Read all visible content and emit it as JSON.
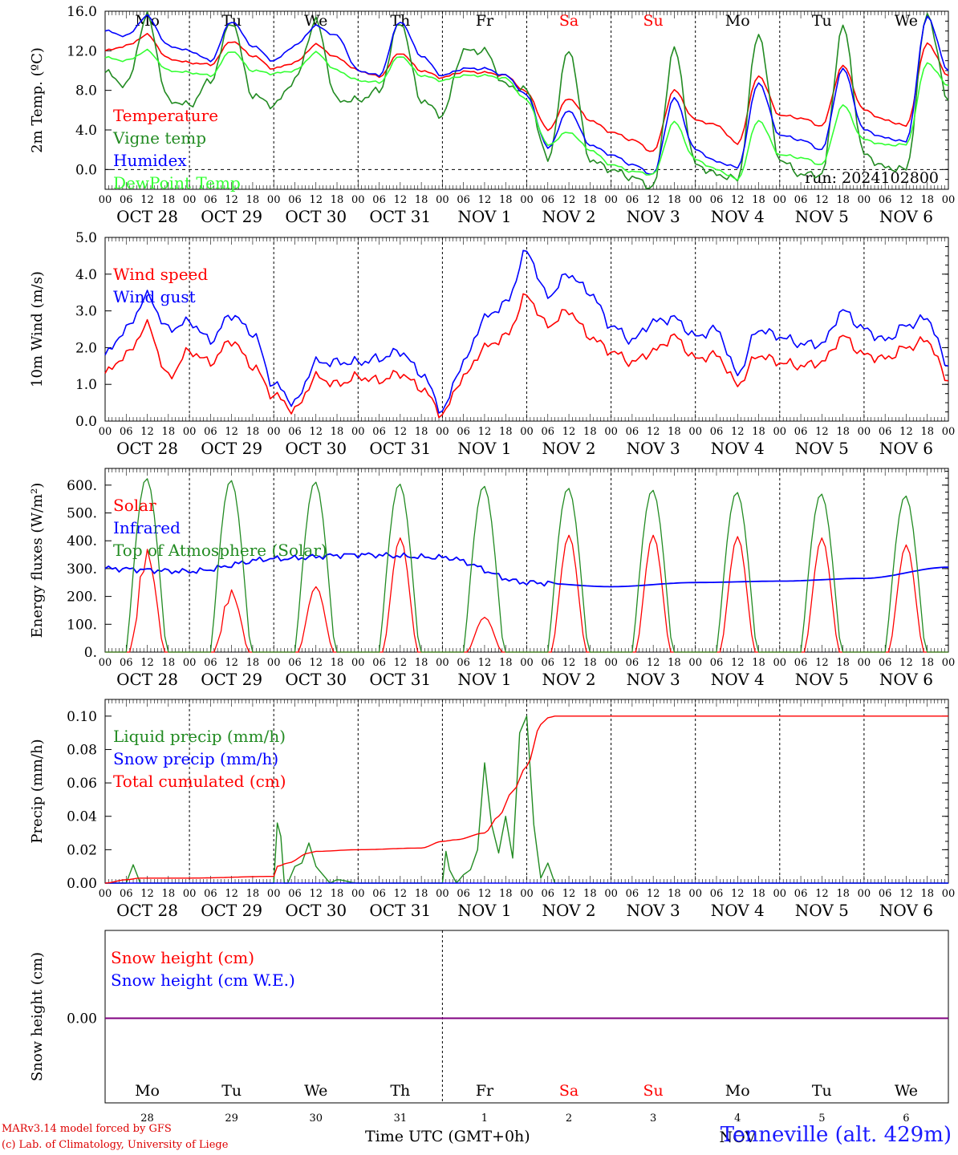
{
  "run_label": "run: 2024102800",
  "day_names": [
    "Mo",
    "Tu",
    "We",
    "Th",
    "Fr",
    "Sa",
    "Su",
    "Mo",
    "Tu",
    "We"
  ],
  "weekend_color": "#ff0000",
  "date_labels": [
    "OCT 28",
    "OCT 29",
    "OCT 30",
    "OCT 31",
    "NOV 1",
    "NOV 2",
    "NOV 3",
    "NOV 4",
    "NOV 5",
    "NOV 6"
  ],
  "hour_ticks": [
    "00",
    "06",
    "12",
    "18"
  ],
  "hour_end": "00",
  "bottom_day_numbers": [
    "28",
    "29",
    "30",
    "31",
    "1",
    "2",
    "3",
    "4",
    "5",
    "6"
  ],
  "bottom_month": "NOV",
  "footer": {
    "model": "MARv3.14 model forced by GFS",
    "lab": "(c) Lab. of Climatology, University of Liege",
    "xlabel": "Time UTC (GMT+0h)",
    "station": "Tenneville (alt. 429m)"
  },
  "chart_data": [
    {
      "type": "line",
      "ylabel": "2m Temp. (ºC)",
      "ylim": [
        -2,
        16
      ],
      "yticks": [
        "0.0",
        "4.0",
        "8.0",
        "12.0",
        "16.0"
      ],
      "ytick_values": [
        0,
        4,
        8,
        12,
        16
      ],
      "zero_line": true,
      "x_hours": [
        0,
        6,
        12,
        18,
        24,
        30,
        36,
        42,
        48,
        54,
        60,
        66,
        72,
        78,
        84,
        90,
        96,
        102,
        108,
        114,
        120,
        126,
        132,
        138,
        144,
        150,
        156,
        162,
        168,
        174,
        180,
        186,
        192,
        198,
        204,
        210,
        216,
        222,
        228,
        234,
        240
      ],
      "series": [
        {
          "name": "Temperature",
          "color": "#ff0000",
          "values": [
            12.0,
            12.5,
            13.6,
            11.2,
            10.8,
            10.6,
            13.0,
            11.5,
            10.2,
            10.8,
            12.6,
            11.3,
            10.0,
            9.4,
            11.8,
            10.0,
            9.3,
            9.9,
            9.8,
            9.5,
            7.8,
            4.0,
            7.2,
            5.0,
            3.8,
            3.0,
            1.8,
            8.0,
            5.0,
            4.5,
            2.6,
            9.5,
            5.5,
            5.2,
            4.4,
            10.5,
            6.0,
            5.0,
            4.4,
            12.8,
            9.5
          ]
        },
        {
          "name": "Vigne temp",
          "color": "#228b22",
          "values": [
            9.8,
            8.5,
            15.5,
            7.0,
            6.5,
            9.0,
            15.0,
            7.5,
            6.5,
            9.0,
            15.0,
            7.0,
            7.0,
            8.0,
            15.0,
            7.0,
            5.5,
            12.0,
            12.0,
            8.5,
            8.0,
            1.0,
            12.2,
            1.0,
            0.0,
            -0.8,
            -1.8,
            12.2,
            0.5,
            -0.5,
            -1.0,
            13.8,
            1.0,
            -0.5,
            -0.5,
            14.5,
            1.5,
            0.2,
            0.0,
            15.8,
            7.0
          ]
        },
        {
          "name": "Humidex",
          "color": "#0000ff",
          "values": [
            14.0,
            13.5,
            15.5,
            12.5,
            12.0,
            11.0,
            15.0,
            12.5,
            11.0,
            12.5,
            14.5,
            13.5,
            10.0,
            9.5,
            15.0,
            11.5,
            9.5,
            10.2,
            10.2,
            9.5,
            7.5,
            2.2,
            6.0,
            2.5,
            1.5,
            0.5,
            -0.5,
            7.2,
            2.0,
            0.8,
            0.2,
            8.8,
            3.5,
            3.0,
            2.0,
            10.2,
            4.0,
            3.2,
            2.8,
            15.5,
            10.0
          ]
        },
        {
          "name": "DewPoint Temp",
          "color": "#33ff33",
          "values": [
            11.3,
            11.0,
            12.0,
            10.0,
            9.8,
            9.5,
            12.0,
            10.0,
            9.7,
            10.0,
            11.8,
            10.0,
            9.0,
            8.8,
            11.5,
            9.5,
            9.0,
            9.5,
            9.5,
            9.2,
            7.0,
            2.5,
            3.8,
            2.0,
            0.5,
            -0.2,
            -0.5,
            4.8,
            1.0,
            0.0,
            -1.0,
            5.0,
            1.5,
            1.2,
            0.5,
            6.5,
            3.0,
            2.5,
            2.5,
            10.8,
            8.5
          ]
        }
      ]
    },
    {
      "type": "line",
      "ylabel": "10m Wind (m/s)",
      "ylim": [
        0,
        5
      ],
      "yticks": [
        "0.0",
        "1.0",
        "2.0",
        "3.0",
        "4.0",
        "5.0"
      ],
      "ytick_values": [
        0,
        1,
        2,
        3,
        4,
        5
      ],
      "x_hours": [
        0,
        6,
        12,
        18,
        24,
        30,
        36,
        42,
        48,
        54,
        60,
        66,
        72,
        78,
        84,
        90,
        96,
        102,
        108,
        114,
        120,
        126,
        132,
        138,
        144,
        150,
        156,
        162,
        168,
        174,
        180,
        186,
        192,
        198,
        204,
        210,
        216,
        222,
        228,
        234,
        240
      ],
      "series": [
        {
          "name": "Wind speed",
          "color": "#ff0000",
          "values": [
            1.3,
            1.8,
            2.6,
            1.2,
            1.9,
            1.6,
            2.2,
            1.5,
            0.7,
            0.3,
            1.2,
            1.0,
            1.2,
            1.1,
            1.3,
            0.9,
            0.2,
            1.2,
            2.0,
            2.3,
            3.4,
            2.6,
            3.0,
            2.3,
            1.9,
            1.6,
            1.9,
            2.3,
            1.7,
            1.8,
            1.0,
            1.8,
            1.6,
            1.5,
            1.6,
            2.3,
            1.8,
            1.7,
            2.0,
            2.2,
            1.1
          ]
        },
        {
          "name": "Wind gust",
          "color": "#0000ff",
          "values": [
            1.8,
            2.5,
            3.4,
            2.5,
            2.7,
            2.2,
            2.9,
            2.4,
            1.0,
            0.5,
            1.6,
            1.6,
            1.6,
            1.7,
            1.9,
            1.3,
            0.3,
            1.6,
            2.8,
            3.2,
            4.6,
            3.4,
            4.0,
            3.5,
            2.6,
            2.2,
            2.7,
            2.8,
            2.3,
            2.5,
            1.3,
            2.5,
            2.3,
            2.1,
            2.1,
            3.0,
            2.5,
            2.2,
            2.6,
            2.8,
            1.5
          ]
        }
      ]
    },
    {
      "type": "line",
      "ylabel": "Energy fluxes (W/m²)",
      "ylim": [
        0,
        660
      ],
      "yticks": [
        "0.",
        "100.",
        "200.",
        "300.",
        "400.",
        "500.",
        "600."
      ],
      "ytick_values": [
        0,
        100,
        200,
        300,
        400,
        500,
        600
      ],
      "diurnal": true,
      "series": [
        {
          "name": "Solar",
          "color": "#ff0000",
          "daily_peaks": [
            380,
            230,
            235,
            410,
            125,
            420,
            420,
            415,
            410,
            385
          ]
        },
        {
          "name": "Infrared",
          "color": "#0000ff",
          "values_at_day_starts": [
            300,
            290,
            335,
            350,
            340,
            250,
            235,
            250,
            255,
            265,
            305
          ]
        },
        {
          "name": "Top of Atmosphere (Solar)",
          "color": "#228b22",
          "daily_peaks": [
            625,
            618,
            612,
            605,
            597,
            590,
            583,
            575,
            569,
            562
          ]
        }
      ]
    },
    {
      "type": "line",
      "ylabel": "Precip (mm/h)",
      "ylim": [
        0,
        0.11
      ],
      "yticks": [
        "0.00",
        "0.02",
        "0.04",
        "0.06",
        "0.08",
        "0.10"
      ],
      "ytick_values": [
        0,
        0.02,
        0.04,
        0.06,
        0.08,
        0.1
      ],
      "series": [
        {
          "name": "Liquid precip (mm/h)",
          "color": "#228b22",
          "x_hours": [
            0,
            6,
            8,
            10,
            12,
            18,
            24,
            30,
            48,
            49,
            50,
            51,
            52,
            54,
            56,
            58,
            60,
            62,
            64,
            66,
            72,
            78,
            84,
            96,
            97,
            98,
            100,
            102,
            104,
            106,
            108,
            110,
            112,
            114,
            116,
            118,
            120,
            122,
            124,
            126,
            128,
            240
          ],
          "values": [
            0,
            0,
            0.011,
            0,
            0,
            0,
            0,
            0,
            0,
            0.036,
            0.028,
            0,
            0,
            0.01,
            0.012,
            0.024,
            0.01,
            0.005,
            0,
            0.002,
            0,
            0,
            0,
            0,
            0.019,
            0.008,
            0,
            0.005,
            0.008,
            0.02,
            0.072,
            0.035,
            0.018,
            0.04,
            0.015,
            0.09,
            0.1,
            0.035,
            0.003,
            0.012,
            0,
            0
          ]
        },
        {
          "name": "Snow precip (mm/h)",
          "color": "#0000ff",
          "x_hours": [
            0,
            240
          ],
          "values": [
            0,
            0
          ]
        },
        {
          "name": "Total cumulated (cm)",
          "color": "#ff0000",
          "x_hours": [
            0,
            6,
            10,
            24,
            48,
            49,
            52,
            58,
            60,
            72,
            90,
            96,
            100,
            108,
            112,
            116,
            120,
            124,
            126,
            128,
            240
          ],
          "values": [
            0,
            0.002,
            0.003,
            0.003,
            0.004,
            0.01,
            0.012,
            0.018,
            0.019,
            0.02,
            0.021,
            0.025,
            0.026,
            0.03,
            0.04,
            0.055,
            0.07,
            0.095,
            0.099,
            0.1,
            0.1
          ]
        }
      ]
    },
    {
      "type": "line",
      "ylabel": "Snow height (cm)",
      "yticks": [
        "0.00"
      ],
      "series": [
        {
          "name": "Snow height (cm)",
          "color": "#ff0000",
          "values": [
            0,
            0
          ]
        },
        {
          "name": "Snow height (cm W.E.)",
          "color": "#0000ff",
          "values": [
            0,
            0
          ]
        }
      ]
    }
  ]
}
